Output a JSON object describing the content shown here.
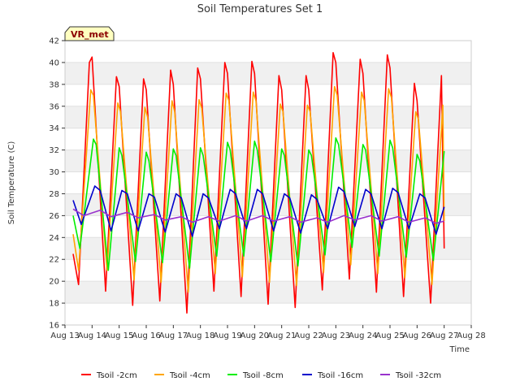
{
  "chart_data": {
    "type": "line",
    "title": "Soil Temperatures Set 1",
    "xlabel": "Time",
    "ylabel": "Soil Temperature (C)",
    "badge": "VR_met",
    "ylim": [
      16,
      42
    ],
    "yticks": [
      16,
      18,
      20,
      22,
      24,
      26,
      28,
      30,
      32,
      34,
      36,
      38,
      40,
      42
    ],
    "xlim": [
      13,
      28
    ],
    "xticks": [
      {
        "value": 13,
        "label": "Aug 13"
      },
      {
        "value": 14,
        "label": "Aug 14"
      },
      {
        "value": 15,
        "label": "Aug 15"
      },
      {
        "value": 16,
        "label": "Aug 16"
      },
      {
        "value": 17,
        "label": "Aug 17"
      },
      {
        "value": 18,
        "label": "Aug 18"
      },
      {
        "value": 19,
        "label": "Aug 19"
      },
      {
        "value": 20,
        "label": "Aug 20"
      },
      {
        "value": 21,
        "label": "Aug 21"
      },
      {
        "value": 22,
        "label": "Aug 22"
      },
      {
        "value": 23,
        "label": "Aug 23"
      },
      {
        "value": 24,
        "label": "Aug 24"
      },
      {
        "value": 25,
        "label": "Aug 25"
      },
      {
        "value": 26,
        "label": "Aug 26"
      },
      {
        "value": 27,
        "label": "Aug 27"
      },
      {
        "value": 28,
        "label": "Aug 28"
      }
    ],
    "grid": "horizontal bands",
    "legend_position": "bottom",
    "series": [
      {
        "name": "Tsoil -2cm",
        "color": "#ff0000",
        "x": [
          13.3,
          13.5,
          13.9,
          14.0,
          14.5,
          14.9,
          15.0,
          15.5,
          15.9,
          16.0,
          16.5,
          16.9,
          17.0,
          17.5,
          17.9,
          18.0,
          18.5,
          18.9,
          19.0,
          19.5,
          19.9,
          20.0,
          20.5,
          20.9,
          21.0,
          21.5,
          21.9,
          22.0,
          22.5,
          22.9,
          23.0,
          23.5,
          23.9,
          24.0,
          24.5,
          24.9,
          25.0,
          25.5,
          25.9,
          26.0,
          26.5,
          26.9,
          27.0
        ],
        "values": [
          22.5,
          19.7,
          40.0,
          40.5,
          19.1,
          38.7,
          37.8,
          17.8,
          38.5,
          37.5,
          18.2,
          39.3,
          38.0,
          17.1,
          39.5,
          38.5,
          19.1,
          40.0,
          39.0,
          18.6,
          40.1,
          39.0,
          17.9,
          38.8,
          37.5,
          17.6,
          38.8,
          37.5,
          19.2,
          40.9,
          40.0,
          20.2,
          40.3,
          39.0,
          19.0,
          40.7,
          39.5,
          18.6,
          38.1,
          36.5,
          18.0,
          38.8,
          23.0
        ]
      },
      {
        "name": "Tsoil -4cm",
        "color": "#ffa500",
        "x": [
          13.3,
          13.5,
          13.95,
          14.05,
          14.55,
          14.95,
          15.05,
          15.55,
          15.95,
          16.05,
          16.55,
          16.95,
          17.05,
          17.55,
          17.95,
          18.05,
          18.55,
          18.95,
          19.05,
          19.55,
          19.95,
          20.05,
          20.55,
          20.95,
          21.05,
          21.55,
          21.95,
          22.05,
          22.55,
          22.95,
          23.05,
          23.55,
          23.95,
          24.05,
          24.55,
          24.95,
          25.05,
          25.55,
          25.95,
          26.05,
          26.55,
          26.95,
          27.0
        ],
        "values": [
          24.3,
          21.0,
          37.5,
          37.0,
          21.0,
          36.3,
          35.5,
          20.1,
          35.9,
          35.0,
          19.9,
          36.5,
          35.5,
          19.0,
          36.6,
          35.8,
          20.7,
          37.2,
          36.5,
          20.4,
          37.3,
          36.5,
          19.9,
          36.2,
          35.5,
          19.6,
          36.1,
          35.5,
          20.8,
          37.8,
          37.0,
          21.5,
          37.3,
          36.5,
          20.7,
          37.6,
          36.8,
          20.3,
          35.5,
          34.8,
          19.7,
          36.1,
          25.5
        ]
      },
      {
        "name": "Tsoil -8cm",
        "color": "#00ee00",
        "x": [
          13.3,
          13.55,
          14.05,
          14.15,
          14.6,
          15.0,
          15.1,
          15.6,
          16.0,
          16.1,
          16.6,
          17.0,
          17.1,
          17.6,
          18.0,
          18.1,
          18.6,
          19.0,
          19.1,
          19.6,
          20.0,
          20.1,
          20.6,
          21.0,
          21.1,
          21.6,
          22.0,
          22.1,
          22.6,
          23.0,
          23.1,
          23.6,
          24.0,
          24.1,
          24.6,
          25.0,
          25.1,
          25.6,
          26.0,
          26.1,
          26.6,
          27.0
        ],
        "values": [
          26.0,
          23.0,
          33.0,
          32.5,
          21.0,
          32.2,
          31.5,
          21.8,
          31.8,
          31.0,
          21.7,
          32.1,
          31.5,
          21.2,
          32.2,
          31.5,
          22.3,
          32.7,
          32.0,
          22.3,
          32.8,
          32.0,
          21.8,
          32.1,
          31.5,
          21.4,
          32.0,
          31.5,
          22.4,
          33.1,
          32.5,
          23.1,
          32.5,
          32.0,
          22.3,
          32.9,
          32.2,
          22.2,
          31.6,
          31.0,
          21.9,
          31.9
        ]
      },
      {
        "name": "Tsoil -16cm",
        "color": "#0000cc",
        "x": [
          13.3,
          13.6,
          14.1,
          14.3,
          14.7,
          15.1,
          15.3,
          15.7,
          16.1,
          16.3,
          16.7,
          17.1,
          17.3,
          17.7,
          18.1,
          18.3,
          18.7,
          19.1,
          19.3,
          19.7,
          20.1,
          20.3,
          20.7,
          21.1,
          21.3,
          21.7,
          22.1,
          22.3,
          22.7,
          23.1,
          23.3,
          23.7,
          24.1,
          24.3,
          24.7,
          25.1,
          25.3,
          25.7,
          26.1,
          26.3,
          26.7,
          27.0
        ],
        "values": [
          27.4,
          25.2,
          28.7,
          28.3,
          24.6,
          28.3,
          28.0,
          24.6,
          28.0,
          27.7,
          24.5,
          28.0,
          27.6,
          24.1,
          28.0,
          27.6,
          24.8,
          28.4,
          28.0,
          24.8,
          28.4,
          28.0,
          24.6,
          28.0,
          27.6,
          24.4,
          27.9,
          27.5,
          24.8,
          28.6,
          28.2,
          25.0,
          28.4,
          28.0,
          24.8,
          28.5,
          28.1,
          24.8,
          28.0,
          27.6,
          24.3,
          26.8
        ]
      },
      {
        "name": "Tsoil -32cm",
        "color": "#9932cc",
        "x": [
          13.3,
          13.7,
          14.3,
          14.7,
          15.3,
          15.7,
          16.3,
          16.7,
          17.3,
          17.7,
          18.3,
          18.7,
          19.3,
          19.7,
          20.3,
          20.7,
          21.3,
          21.7,
          22.3,
          22.7,
          23.3,
          23.7,
          24.3,
          24.7,
          25.3,
          25.7,
          26.3,
          26.7,
          27.0
        ],
        "values": [
          26.6,
          26.0,
          26.5,
          25.9,
          26.3,
          25.8,
          26.1,
          25.6,
          25.9,
          25.4,
          25.9,
          25.5,
          26.0,
          25.5,
          26.0,
          25.5,
          25.9,
          25.4,
          25.8,
          25.4,
          26.0,
          25.6,
          26.0,
          25.5,
          25.9,
          25.4,
          25.8,
          25.3,
          25.5
        ]
      }
    ]
  }
}
